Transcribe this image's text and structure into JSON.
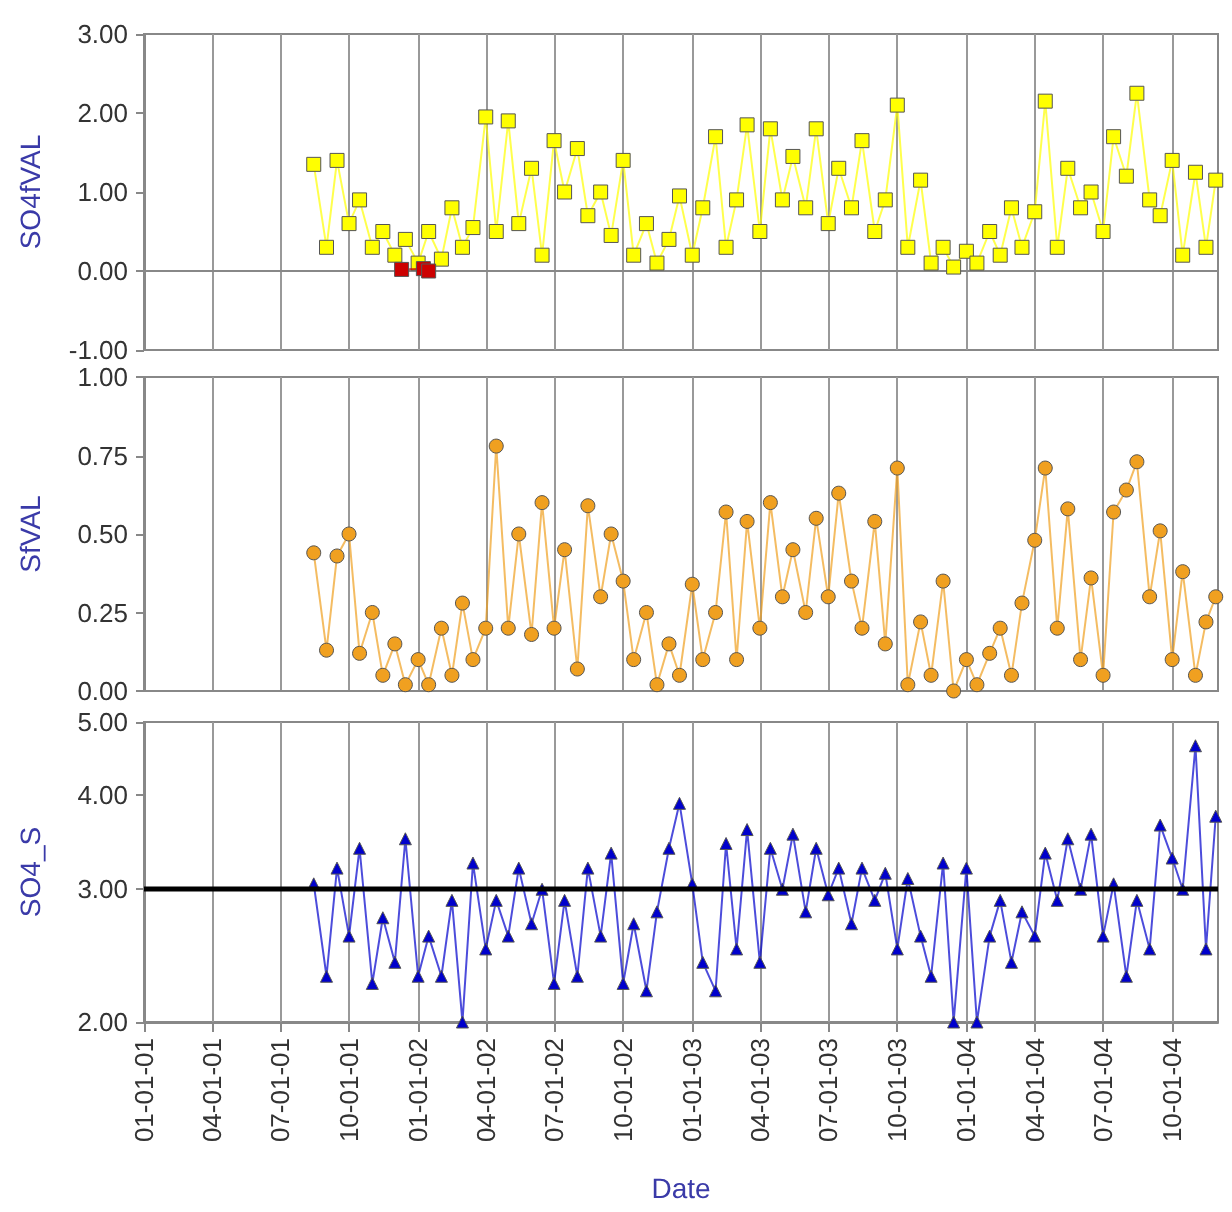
{
  "chart_data": [
    {
      "type": "line",
      "ylabel": "SO4fVAL",
      "marker": "square",
      "grid": "x",
      "tick_labels": "y",
      "x": [
        "2001-08-15",
        "2001-09-01",
        "2001-09-15",
        "2001-10-01",
        "2001-10-15",
        "2001-11-01",
        "2001-11-15",
        "2001-12-01",
        "2001-12-15",
        "2002-01-01",
        "2002-01-15",
        "2002-02-01",
        "2002-02-15",
        "2002-03-01",
        "2002-03-15",
        "2002-04-01",
        "2002-04-15",
        "2002-05-01",
        "2002-05-15",
        "2002-06-01",
        "2002-06-15",
        "2002-07-01",
        "2002-07-15",
        "2002-08-01",
        "2002-08-15",
        "2002-09-01",
        "2002-09-15",
        "2002-10-01",
        "2002-10-15",
        "2002-11-01",
        "2002-11-15",
        "2002-12-01",
        "2002-12-15",
        "2003-01-01",
        "2003-01-15",
        "2003-02-01",
        "2003-02-15",
        "2003-03-01",
        "2003-03-15",
        "2003-04-01",
        "2003-04-15",
        "2003-05-01",
        "2003-05-15",
        "2003-06-01",
        "2003-06-15",
        "2003-07-01",
        "2003-07-15",
        "2003-08-01",
        "2003-08-15",
        "2003-09-01",
        "2003-09-15",
        "2003-10-01",
        "2003-10-15",
        "2003-11-01",
        "2003-11-15",
        "2003-12-01",
        "2003-12-15",
        "2004-01-01",
        "2004-01-15",
        "2004-02-01",
        "2004-02-15",
        "2004-03-01",
        "2004-03-15",
        "2004-04-01",
        "2004-04-15",
        "2004-05-01",
        "2004-05-15",
        "2004-06-01",
        "2004-06-15",
        "2004-07-01",
        "2004-07-15",
        "2004-08-01",
        "2004-08-15",
        "2004-09-01",
        "2004-09-15",
        "2004-10-01",
        "2004-10-15",
        "2004-11-01",
        "2004-11-15",
        "2004-11-28"
      ],
      "series": [
        {
          "color": "#ffff00",
          "values": [
            1.35,
            0.3,
            1.4,
            0.6,
            0.9,
            0.3,
            0.5,
            0.2,
            0.4,
            0.1,
            0.5,
            0.15,
            0.8,
            0.3,
            0.55,
            1.95,
            0.5,
            1.9,
            0.6,
            1.3,
            0.2,
            1.65,
            1.0,
            1.55,
            0.7,
            1.0,
            0.45,
            1.4,
            0.2,
            0.6,
            0.1,
            0.4,
            0.95,
            0.2,
            0.8,
            1.7,
            0.3,
            0.9,
            1.85,
            0.5,
            1.8,
            0.9,
            1.45,
            0.8,
            1.8,
            0.6,
            1.3,
            0.8,
            1.65,
            0.5,
            0.9,
            2.1,
            0.3,
            1.15,
            0.1,
            0.3,
            0.05,
            0.25,
            0.1,
            0.5,
            0.2,
            0.8,
            0.3,
            0.75,
            2.15,
            0.3,
            1.3,
            0.8,
            1.0,
            0.5,
            1.7,
            1.2,
            2.25,
            0.9,
            0.7,
            1.4,
            0.2,
            1.25,
            0.3,
            1.15
          ]
        },
        {
          "color": "#cc0000",
          "x": [
            "2001-12-10",
            "2002-01-08",
            "2002-01-15"
          ],
          "values": [
            0.02,
            0.03,
            0.0
          ]
        }
      ],
      "xlim": [
        "2001-01-01",
        "2004-12-01"
      ],
      "xticks": [
        "2001-01-01",
        "2001-04-01",
        "2001-07-01",
        "2001-10-01",
        "2002-01-01",
        "2002-04-01",
        "2002-07-01",
        "2002-10-01",
        "2003-01-01",
        "2003-04-01",
        "2003-07-01",
        "2003-10-01",
        "2004-01-01",
        "2004-04-01",
        "2004-07-01",
        "2004-10-01"
      ],
      "ylim": [
        -1,
        3
      ],
      "yticks": [
        {
          "value": -1,
          "label": "-1.00"
        },
        {
          "value": 0,
          "label": "0.00"
        },
        {
          "value": 1,
          "label": "1.00"
        },
        {
          "value": 2,
          "label": "2.00"
        },
        {
          "value": 3,
          "label": "3.00"
        }
      ]
    },
    {
      "type": "line",
      "ylabel": "SfVAL",
      "marker": "circle",
      "grid": "x",
      "tick_labels": "y",
      "x": [
        "2001-08-15",
        "2001-09-01",
        "2001-09-15",
        "2001-10-01",
        "2001-10-15",
        "2001-11-01",
        "2001-11-15",
        "2001-12-01",
        "2001-12-15",
        "2002-01-01",
        "2002-01-15",
        "2002-02-01",
        "2002-02-15",
        "2002-03-01",
        "2002-03-15",
        "2002-04-01",
        "2002-04-15",
        "2002-05-01",
        "2002-05-15",
        "2002-06-01",
        "2002-06-15",
        "2002-07-01",
        "2002-07-15",
        "2002-08-01",
        "2002-08-15",
        "2002-09-01",
        "2002-09-15",
        "2002-10-01",
        "2002-10-15",
        "2002-11-01",
        "2002-11-15",
        "2002-12-01",
        "2002-12-15",
        "2003-01-01",
        "2003-01-15",
        "2003-02-01",
        "2003-02-15",
        "2003-03-01",
        "2003-03-15",
        "2003-04-01",
        "2003-04-15",
        "2003-05-01",
        "2003-05-15",
        "2003-06-01",
        "2003-06-15",
        "2003-07-01",
        "2003-07-15",
        "2003-08-01",
        "2003-08-15",
        "2003-09-01",
        "2003-09-15",
        "2003-10-01",
        "2003-10-15",
        "2003-11-01",
        "2003-11-15",
        "2003-12-01",
        "2003-12-15",
        "2004-01-01",
        "2004-01-15",
        "2004-02-01",
        "2004-02-15",
        "2004-03-01",
        "2004-03-15",
        "2004-04-01",
        "2004-04-15",
        "2004-05-01",
        "2004-05-15",
        "2004-06-01",
        "2004-06-15",
        "2004-07-01",
        "2004-07-15",
        "2004-08-01",
        "2004-08-15",
        "2004-09-01",
        "2004-09-15",
        "2004-10-01",
        "2004-10-15",
        "2004-11-01",
        "2004-11-15",
        "2004-11-28"
      ],
      "series": [
        {
          "color": "#f0a020",
          "values": [
            0.44,
            0.13,
            0.43,
            0.5,
            0.12,
            0.25,
            0.05,
            0.15,
            0.02,
            0.1,
            0.02,
            0.2,
            0.05,
            0.28,
            0.1,
            0.2,
            0.78,
            0.2,
            0.5,
            0.18,
            0.6,
            0.2,
            0.45,
            0.07,
            0.59,
            0.3,
            0.5,
            0.35,
            0.1,
            0.25,
            0.02,
            0.15,
            0.05,
            0.34,
            0.1,
            0.25,
            0.57,
            0.1,
            0.54,
            0.2,
            0.6,
            0.3,
            0.45,
            0.25,
            0.55,
            0.3,
            0.63,
            0.35,
            0.2,
            0.54,
            0.15,
            0.71,
            0.02,
            0.22,
            0.05,
            0.35,
            0.0,
            0.1,
            0.02,
            0.12,
            0.2,
            0.05,
            0.28,
            0.48,
            0.71,
            0.2,
            0.58,
            0.1,
            0.36,
            0.05,
            0.57,
            0.64,
            0.73,
            0.3,
            0.51,
            0.1,
            0.38,
            0.05,
            0.22,
            0.3
          ]
        }
      ],
      "xlim": [
        "2001-01-01",
        "2004-12-01"
      ],
      "xticks": [
        "2001-01-01",
        "2001-04-01",
        "2001-07-01",
        "2001-10-01",
        "2002-01-01",
        "2002-04-01",
        "2002-07-01",
        "2002-10-01",
        "2003-01-01",
        "2003-04-01",
        "2003-07-01",
        "2003-10-01",
        "2004-01-01",
        "2004-04-01",
        "2004-07-01",
        "2004-10-01"
      ],
      "ylim": [
        0,
        1
      ],
      "yticks": [
        {
          "value": 0,
          "label": "0.00"
        },
        {
          "value": 0.25,
          "label": "0.25"
        },
        {
          "value": 0.5,
          "label": "0.50"
        },
        {
          "value": 0.75,
          "label": "0.75"
        },
        {
          "value": 1,
          "label": "1.00"
        }
      ]
    },
    {
      "type": "line",
      "ylabel": "SO4_S",
      "xlabel": "Date",
      "marker": "triangle",
      "grid": "x",
      "log": "y",
      "x": [
        "2001-08-15",
        "2001-09-01",
        "2001-09-15",
        "2001-10-01",
        "2001-10-15",
        "2001-11-01",
        "2001-11-15",
        "2001-12-01",
        "2001-12-15",
        "2002-01-01",
        "2002-01-15",
        "2002-02-01",
        "2002-02-15",
        "2002-03-01",
        "2002-03-15",
        "2002-04-01",
        "2002-04-15",
        "2002-05-01",
        "2002-05-15",
        "2002-06-01",
        "2002-06-15",
        "2002-07-01",
        "2002-07-15",
        "2002-08-01",
        "2002-08-15",
        "2002-09-01",
        "2002-09-15",
        "2002-10-01",
        "2002-10-15",
        "2002-11-01",
        "2002-11-15",
        "2002-12-01",
        "2002-12-15",
        "2003-01-01",
        "2003-01-15",
        "2003-02-01",
        "2003-02-15",
        "2003-03-01",
        "2003-03-15",
        "2003-04-01",
        "2003-04-15",
        "2003-05-01",
        "2003-05-15",
        "2003-06-01",
        "2003-06-15",
        "2003-07-01",
        "2003-07-15",
        "2003-08-01",
        "2003-08-15",
        "2003-09-01",
        "2003-09-15",
        "2003-10-01",
        "2003-10-15",
        "2003-11-01",
        "2003-11-15",
        "2003-12-01",
        "2003-12-15",
        "2004-01-01",
        "2004-01-15",
        "2004-02-01",
        "2004-02-15",
        "2004-03-01",
        "2004-03-15",
        "2004-04-01",
        "2004-04-15",
        "2004-05-01",
        "2004-05-15",
        "2004-06-01",
        "2004-06-15",
        "2004-07-01",
        "2004-07-15",
        "2004-08-01",
        "2004-08-15",
        "2004-09-01",
        "2004-09-15",
        "2004-10-01",
        "2004-10-15",
        "2004-11-01",
        "2004-11-15",
        "2004-11-28"
      ],
      "series": [
        {
          "color": "#0000cc",
          "values": [
            3.05,
            2.3,
            3.2,
            2.6,
            3.4,
            2.25,
            2.75,
            2.4,
            3.5,
            2.3,
            2.6,
            2.3,
            2.9,
            2.0,
            3.25,
            2.5,
            2.9,
            2.6,
            3.2,
            2.7,
            3.0,
            2.25,
            2.9,
            2.3,
            3.2,
            2.6,
            3.35,
            2.25,
            2.7,
            2.2,
            2.8,
            3.4,
            3.9,
            3.05,
            2.4,
            2.2,
            3.45,
            2.5,
            3.6,
            2.4,
            3.4,
            3.0,
            3.55,
            2.8,
            3.4,
            2.95,
            3.2,
            2.7,
            3.2,
            2.9,
            3.15,
            2.5,
            3.1,
            2.6,
            2.3,
            3.25,
            2.0,
            3.2,
            2.0,
            2.6,
            2.9,
            2.4,
            2.8,
            2.6,
            3.35,
            2.9,
            3.5,
            3.0,
            3.55,
            2.6,
            3.05,
            2.3,
            2.9,
            2.5,
            3.65,
            3.3,
            3.0,
            4.65,
            2.5,
            3.75
          ]
        }
      ],
      "xlim": [
        "2001-01-01",
        "2004-12-01"
      ],
      "xticks": [
        {
          "value": "2001-01-01",
          "label": "01-01-01"
        },
        {
          "value": "2001-04-01",
          "label": "04-01-01"
        },
        {
          "value": "2001-07-01",
          "label": "07-01-01"
        },
        {
          "value": "2001-10-01",
          "label": "10-01-01"
        },
        {
          "value": "2002-01-01",
          "label": "01-01-02"
        },
        {
          "value": "2002-04-01",
          "label": "04-01-02"
        },
        {
          "value": "2002-07-01",
          "label": "07-01-02"
        },
        {
          "value": "2002-10-01",
          "label": "10-01-02"
        },
        {
          "value": "2003-01-01",
          "label": "01-01-03"
        },
        {
          "value": "2003-04-01",
          "label": "04-01-03"
        },
        {
          "value": "2003-07-01",
          "label": "07-01-03"
        },
        {
          "value": "2003-10-01",
          "label": "10-01-03"
        },
        {
          "value": "2004-01-01",
          "label": "01-01-04"
        },
        {
          "value": "2004-04-01",
          "label": "04-01-04"
        },
        {
          "value": "2004-07-01",
          "label": "07-01-04"
        },
        {
          "value": "2004-10-01",
          "label": "10-01-04"
        }
      ],
      "ylim": [
        2,
        5
      ],
      "yticks": [
        {
          "value": 2,
          "label": "2.00"
        },
        {
          "value": 3,
          "label": "3.00"
        },
        {
          "value": 4,
          "label": "4.00"
        },
        {
          "value": 5,
          "label": "5.00"
        }
      ],
      "ref_lines": [
        {
          "axis": "y",
          "value": 3,
          "color": "#000000"
        }
      ]
    }
  ]
}
